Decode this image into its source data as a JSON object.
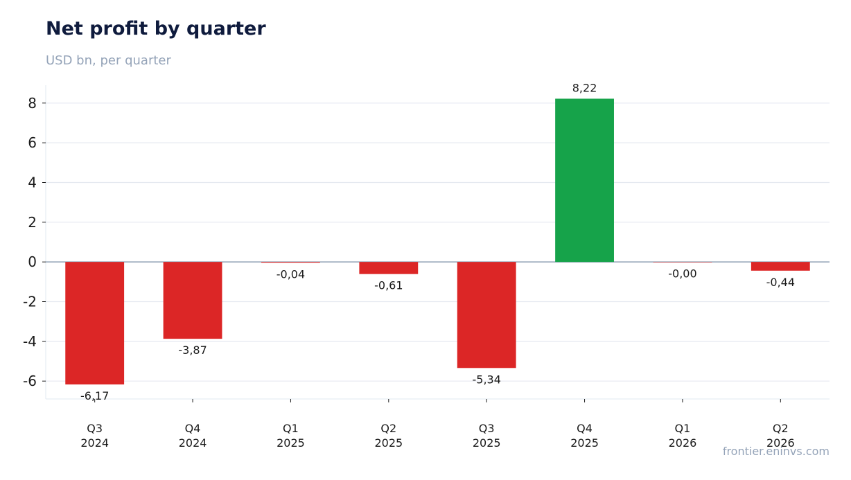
{
  "header": {
    "title": "Net profit by quarter",
    "subtitle": "USD bn, per quarter"
  },
  "footer": {
    "source": "frontier.eninvs.com"
  },
  "colors": {
    "positive": "#16a34a",
    "negative": "#dc2626",
    "zero_line": "#94a3b8",
    "grid": "#e5e9f0"
  },
  "chart_data": {
    "type": "bar",
    "title": "Net profit by quarter",
    "subtitle": "USD bn, per quarter",
    "categories": [
      [
        "Q3",
        "2024"
      ],
      [
        "Q4",
        "2024"
      ],
      [
        "Q1",
        "2025"
      ],
      [
        "Q2",
        "2025"
      ],
      [
        "Q3",
        "2025"
      ],
      [
        "Q4",
        "2025"
      ],
      [
        "Q1",
        "2026"
      ],
      [
        "Q2",
        "2026"
      ]
    ],
    "values": [
      -6.17,
      -3.87,
      -0.04,
      -0.61,
      -5.34,
      8.22,
      -0.004,
      -0.44
    ],
    "value_labels": [
      "-6,17",
      "-3,87",
      "-0,04",
      "-0,61",
      "-5,34",
      "8,22",
      "-0,00",
      "-0,44"
    ],
    "yticks": [
      8,
      6,
      4,
      2,
      0,
      -2,
      -4,
      -6
    ],
    "ytick_labels": [
      "8",
      "6",
      "4",
      "2",
      "0",
      "-2",
      "-4",
      "-6"
    ],
    "ylim": [
      -6.9,
      8.9
    ],
    "grid": true,
    "legend": "none"
  }
}
